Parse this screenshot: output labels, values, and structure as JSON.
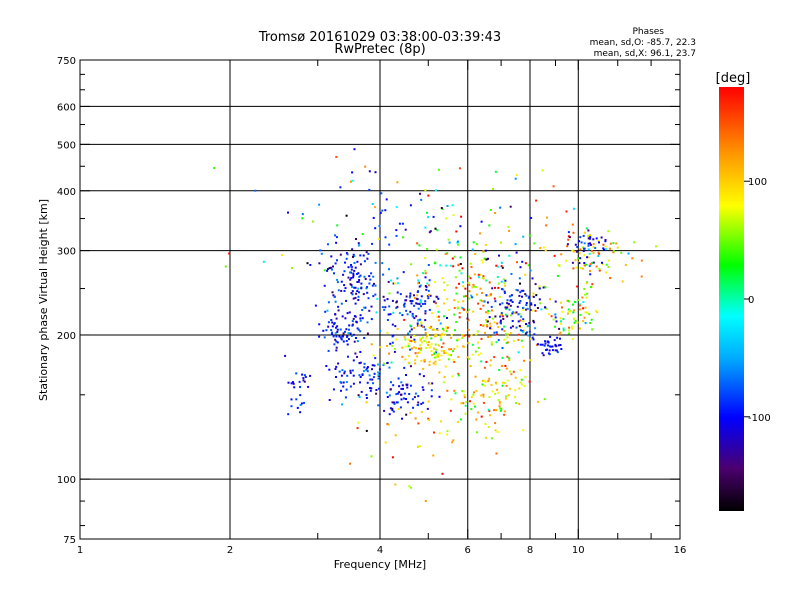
{
  "chart_data": {
    "type": "scatter",
    "title": "Tromsø 20161029 03:38:00-03:39:43",
    "subtitle": "RwPretec (8p)",
    "xlabel": "Frequency [MHz]",
    "ylabel": "Stationary phase Virtual Height [km]",
    "xscale": "log",
    "yscale": "log",
    "xlim": [
      1,
      16
    ],
    "ylim": [
      75,
      750
    ],
    "xticks": [
      1,
      2,
      4,
      6,
      8,
      10,
      16
    ],
    "yticks": [
      75,
      100,
      200,
      300,
      400,
      500,
      600,
      750
    ],
    "grid": true,
    "stats": {
      "title": "Phases",
      "line_o": "mean, sd,O: -85.7, 22.3",
      "line_x": "mean, sd,X:  96.1, 23.7"
    },
    "colorbar": {
      "label": "[deg]",
      "range": [
        -180,
        180
      ],
      "ticks": [
        100,
        0,
        -100
      ]
    },
    "clusters": [
      {
        "f": 3.5,
        "h": 250,
        "sf": 0.22,
        "sh": 35,
        "n": 170,
        "phase": -100,
        "sp": 25
      },
      {
        "f": 3.3,
        "h": 200,
        "sf": 0.15,
        "sh": 8,
        "n": 50,
        "phase": -95,
        "sp": 20
      },
      {
        "f": 3.6,
        "h": 165,
        "sf": 0.35,
        "sh": 8,
        "n": 70,
        "phase": -100,
        "sp": 20
      },
      {
        "f": 2.75,
        "h": 155,
        "sf": 0.06,
        "sh": 10,
        "n": 25,
        "phase": -100,
        "sp": 15
      },
      {
        "f": 4.4,
        "h": 150,
        "sf": 0.35,
        "sh": 8,
        "n": 70,
        "phase": -100,
        "sp": 25
      },
      {
        "f": 4.6,
        "h": 230,
        "sf": 0.35,
        "sh": 18,
        "n": 110,
        "phase": -100,
        "sp": 25
      },
      {
        "f": 5.0,
        "h": 190,
        "sf": 0.45,
        "sh": 10,
        "n": 130,
        "phase": 95,
        "sp": 30
      },
      {
        "f": 5.8,
        "h": 255,
        "sf": 0.8,
        "sh": 30,
        "n": 140,
        "phase": 70,
        "sp": 70
      },
      {
        "f": 6.8,
        "h": 200,
        "sf": 0.8,
        "sh": 30,
        "n": 140,
        "phase": 95,
        "sp": 40
      },
      {
        "f": 6.6,
        "h": 150,
        "sf": 0.6,
        "sh": 12,
        "n": 80,
        "phase": 90,
        "sp": 45
      },
      {
        "f": 7.5,
        "h": 230,
        "sf": 0.6,
        "sh": 18,
        "n": 110,
        "phase": -95,
        "sp": 30
      },
      {
        "f": 8.8,
        "h": 190,
        "sf": 0.35,
        "sh": 5,
        "n": 35,
        "phase": -100,
        "sp": 15
      },
      {
        "f": 9.8,
        "h": 222,
        "sf": 0.6,
        "sh": 12,
        "n": 70,
        "phase": 70,
        "sp": 50
      },
      {
        "f": 10.5,
        "h": 290,
        "sf": 1.0,
        "sh": 20,
        "n": 80,
        "phase": 90,
        "sp": 45
      },
      {
        "f": 10.5,
        "h": 310,
        "sf": 0.5,
        "sh": 15,
        "n": 40,
        "phase": -100,
        "sp": 20
      },
      {
        "f": 6.0,
        "h": 330,
        "sf": 2.0,
        "sh": 60,
        "n": 110,
        "phase": 0,
        "sp": 110
      },
      {
        "f": 5.0,
        "h": 120,
        "sf": 1.0,
        "sh": 15,
        "n": 40,
        "phase": 95,
        "sp": 40
      },
      {
        "f": 4.0,
        "h": 370,
        "sf": 0.3,
        "sh": 50,
        "n": 20,
        "phase": -100,
        "sp": 20
      }
    ]
  }
}
